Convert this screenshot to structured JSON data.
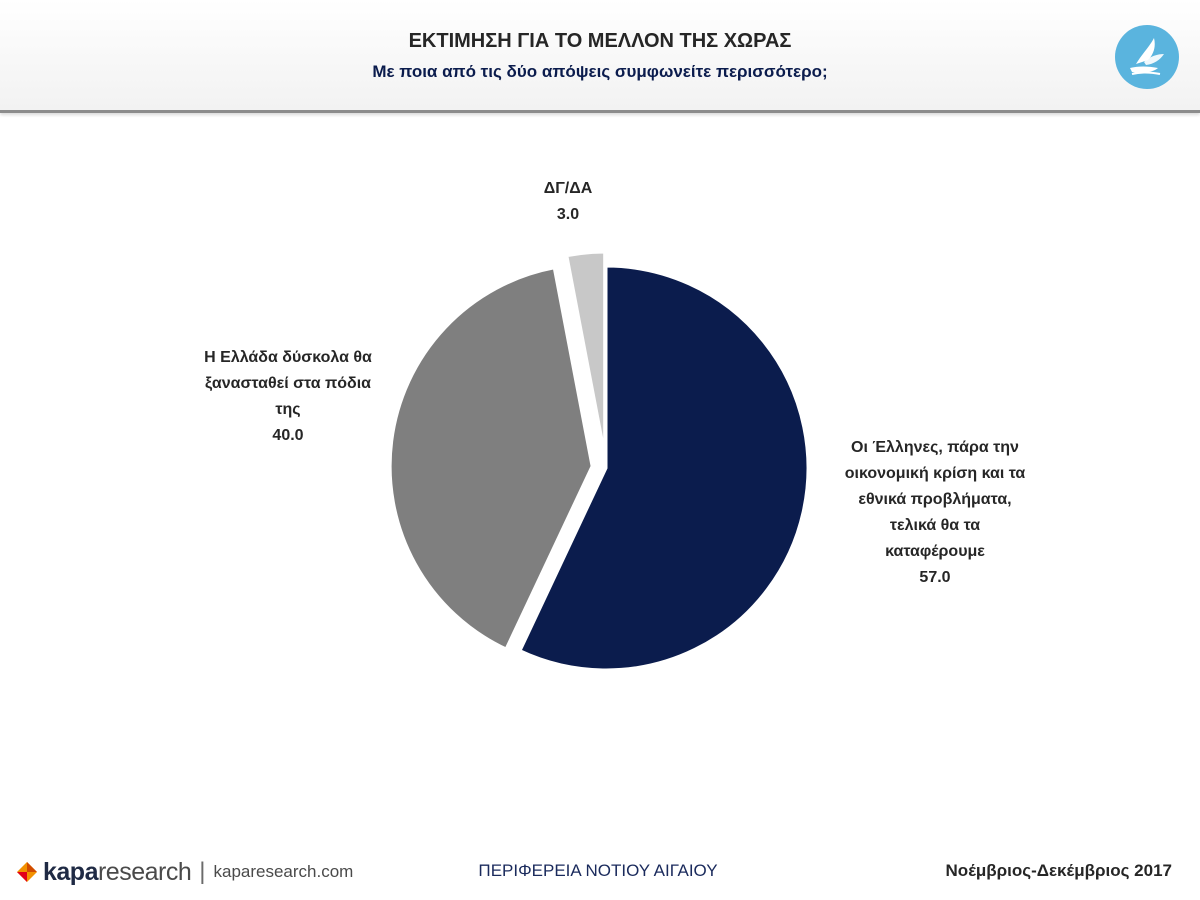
{
  "header": {
    "title": "ΕΚΤΙΜΗΣΗ ΓΙΑ ΤΟ ΜΕΛΛΟΝ ΤΗΣ ΧΩΡΑΣ",
    "subtitle": "Με ποια από τις δύο απόψεις συμφωνείτε περισσότερο;",
    "logo_icon": "dove-hand-logo-icon",
    "logo_color": "#5ab4de"
  },
  "chart_data": {
    "type": "pie",
    "start_angle_deg": 0,
    "direction": "clockwise",
    "slices": [
      {
        "label_lines": [
          "Οι Έλληνες, πάρα την",
          "οικονομική κρίση και τα",
          "εθνικά προβλήματα,",
          "τελικά θα τα",
          "καταφέρουμε"
        ],
        "value": 57.0,
        "value_label": "57.0",
        "color": "#0b1c4d",
        "exploded": false
      },
      {
        "label_lines": [
          "Η Ελλάδα δύσκολα θα",
          "ξανασταθεί στα πόδια",
          "της"
        ],
        "value": 40.0,
        "value_label": "40.0",
        "color": "#7f7f7f",
        "exploded": true
      },
      {
        "label_lines": [
          "ΔΓ/ΔΑ"
        ],
        "value": 3.0,
        "value_label": "3.0",
        "color": "#c8c8c8",
        "exploded": true
      }
    ]
  },
  "footer": {
    "brand_bold": "kapa",
    "brand_rest": "research",
    "separator": "|",
    "url": "kaparesearch.com",
    "region": "ΠΕΡΙΦΕΡΕΙΑ ΝΟΤΙΟΥ ΑΙΓΑΙΟΥ",
    "date": "Νοέμβριος-Δεκέμβριος 2017"
  }
}
